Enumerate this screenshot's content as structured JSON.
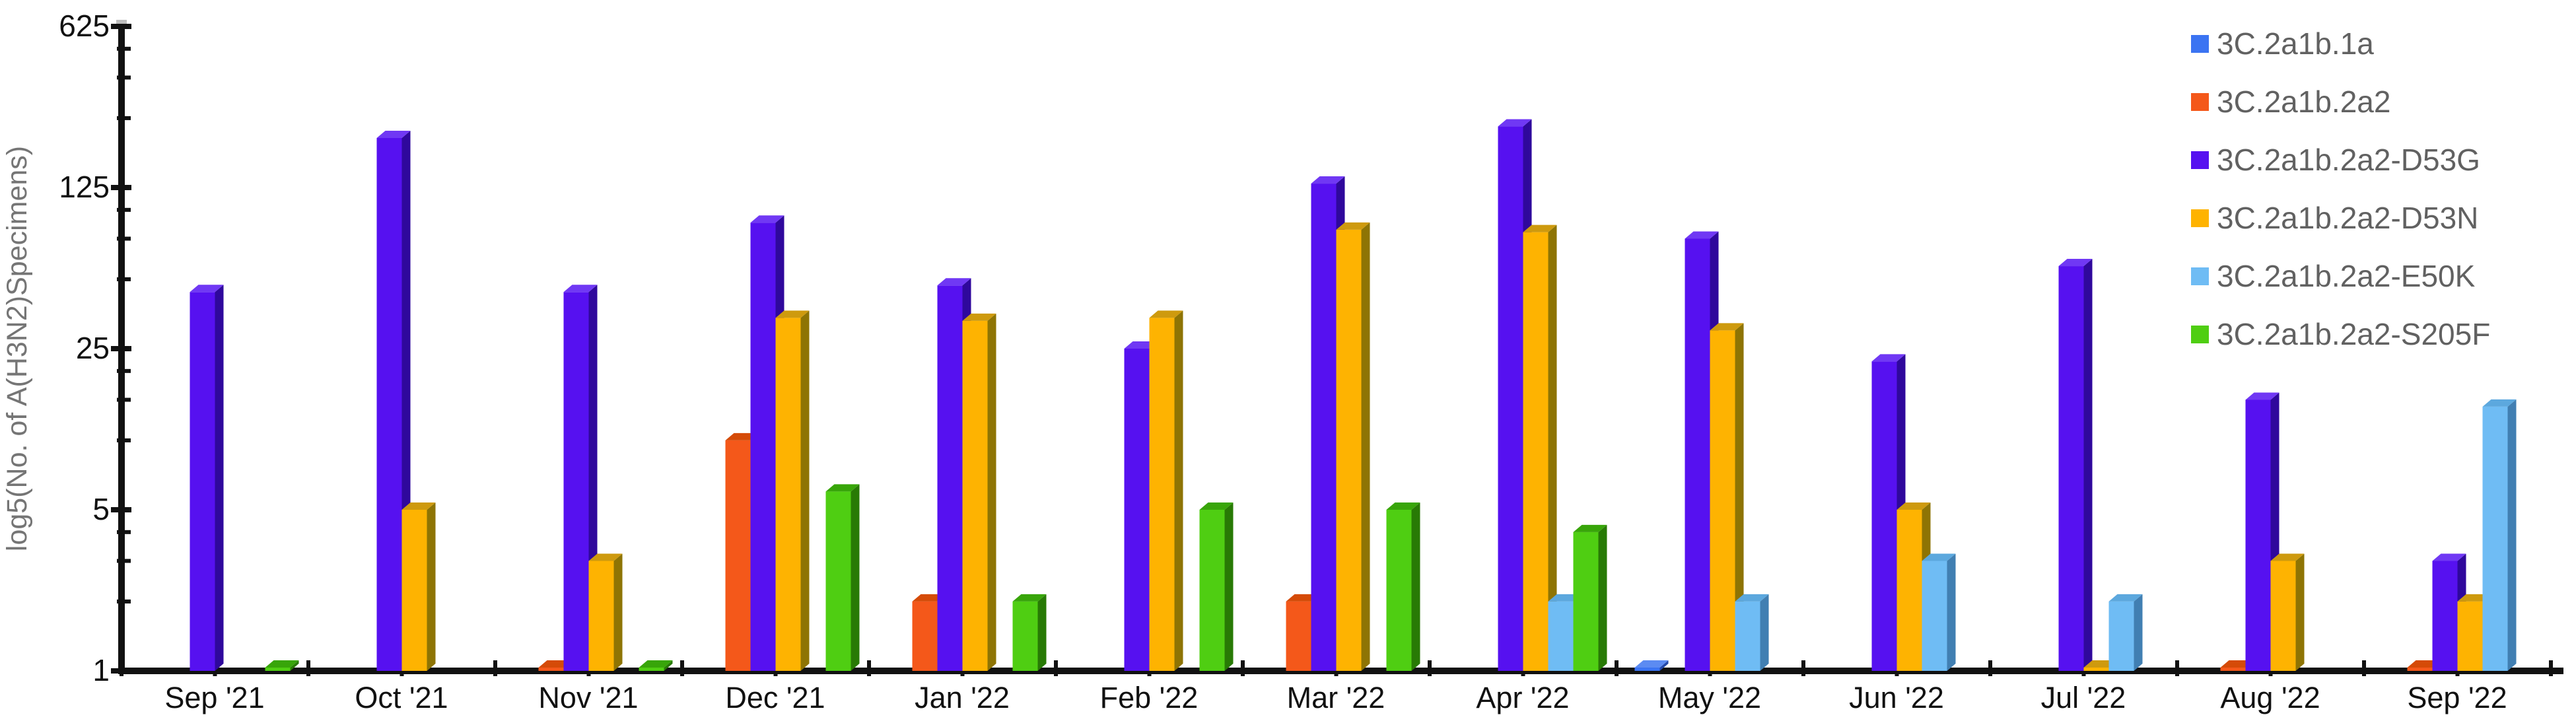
{
  "chart_data": {
    "type": "bar",
    "style": "3d-clustered-bars",
    "title": "",
    "xlabel": "",
    "ylabel": "log5(No. of A(H3N2)Specimens)",
    "scale": "log-base-5",
    "ylim": [
      1,
      625
    ],
    "grid": false,
    "legend_position": "top-right",
    "y_ticks": [
      "625",
      "125",
      "25",
      "5",
      "1"
    ],
    "y_tick_values": [
      625,
      125,
      25,
      5,
      1
    ],
    "y_minor_tick_values": [
      2,
      3,
      4,
      10,
      15,
      20,
      50,
      75,
      100,
      250,
      375,
      500
    ],
    "categories": [
      "Sep '21",
      "Oct '21",
      "Nov '21",
      "Dec '21",
      "Jan '22",
      "Feb '22",
      "Mar '22",
      "Apr '22",
      "May '22",
      "Jun '22",
      "Jul '22",
      "Aug '22",
      "Sep '22"
    ],
    "series": [
      {
        "name": "3C.2a1b.1a",
        "color": "#3B74F2",
        "side_color": "#2348A8",
        "top_color": "#5C8BF2",
        "values": [
          0,
          0,
          0,
          0,
          0,
          0,
          0,
          0,
          1,
          0,
          0,
          0,
          0
        ]
      },
      {
        "name": "3C.2a1b.2a2",
        "color": "#F4581A",
        "side_color": "#AC3D06",
        "top_color": "#D54B08",
        "values": [
          0,
          0,
          1,
          10,
          2,
          0,
          2,
          0,
          0,
          0,
          0,
          1,
          1
        ]
      },
      {
        "name": "3C.2a1b.2a2-D53G",
        "color": "#5611F0",
        "side_color": "#2F089C",
        "top_color": "#7038F4",
        "values": [
          44,
          205,
          44,
          88,
          47,
          25,
          130,
          230,
          75,
          22,
          57,
          15,
          3
        ]
      },
      {
        "name": "3C.2a1b.2a2-D53N",
        "color": "#FEB301",
        "side_color": "#8E7404",
        "top_color": "#CE9A0E",
        "values": [
          0,
          5,
          3,
          34,
          33,
          34,
          82,
          80,
          30,
          5,
          1,
          3,
          2
        ]
      },
      {
        "name": "3C.2a1b.2a2-E50K",
        "color": "#6FBCF4",
        "side_color": "#417FB2",
        "top_color": "#5CA8DE",
        "values": [
          0,
          0,
          0,
          0,
          0,
          0,
          0,
          2,
          2,
          3,
          2,
          0,
          14
        ]
      },
      {
        "name": "3C.2a1b.2a2-S205F",
        "color": "#4FCE12",
        "side_color": "#287A05",
        "top_color": "#38A50A",
        "values": [
          1,
          0,
          1,
          6,
          2,
          5,
          5,
          4,
          0,
          0,
          0,
          0,
          0
        ]
      }
    ]
  }
}
